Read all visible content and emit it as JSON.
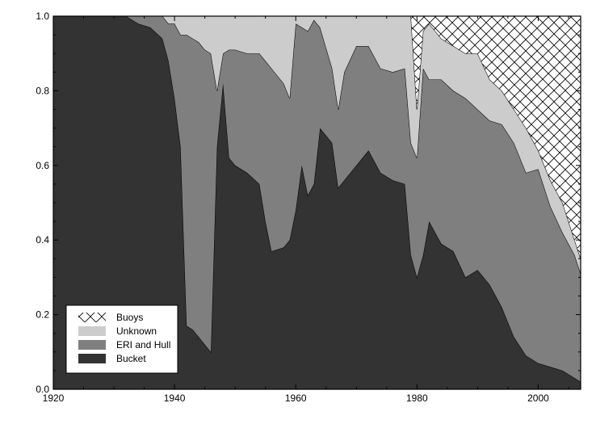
{
  "chart_data": {
    "type": "area",
    "stacked": true,
    "xlim": [
      1920,
      2007
    ],
    "ylim": [
      0.0,
      1.0
    ],
    "xticks": [
      "1920",
      "1940",
      "1960",
      "1980",
      "2000"
    ],
    "yticks": [
      "0.0",
      "0.2",
      "0.4",
      "0.6",
      "0.8",
      "1.0"
    ],
    "legend_position": "bottom-left",
    "x": [
      1920,
      1932,
      1934,
      1936,
      1938,
      1939,
      1940,
      1941,
      1942,
      1943,
      1944,
      1945,
      1946,
      1947,
      1948,
      1949,
      1950,
      1952,
      1954,
      1955,
      1956,
      1958,
      1959,
      1960,
      1961,
      1962,
      1963,
      1964,
      1966,
      1967,
      1968,
      1970,
      1972,
      1974,
      1976,
      1978,
      1979,
      1980,
      1981,
      1982,
      1984,
      1986,
      1988,
      1990,
      1992,
      1994,
      1996,
      1998,
      2000,
      2002,
      2004,
      2006,
      2007
    ],
    "series": [
      {
        "name": "Bucket",
        "fill": "#333333",
        "values": [
          1.0,
          1.0,
          0.98,
          0.97,
          0.94,
          0.88,
          0.78,
          0.65,
          0.17,
          0.16,
          0.14,
          0.12,
          0.1,
          0.65,
          0.82,
          0.62,
          0.6,
          0.58,
          0.55,
          0.45,
          0.37,
          0.38,
          0.4,
          0.48,
          0.6,
          0.52,
          0.55,
          0.7,
          0.66,
          0.54,
          0.56,
          0.6,
          0.64,
          0.58,
          0.56,
          0.55,
          0.36,
          0.3,
          0.36,
          0.45,
          0.39,
          0.37,
          0.3,
          0.32,
          0.28,
          0.22,
          0.14,
          0.09,
          0.07,
          0.06,
          0.05,
          0.03,
          0.02
        ]
      },
      {
        "name": "ERI and Hull",
        "fill": "#7f7f7f",
        "values": [
          0.0,
          0.0,
          0.02,
          0.03,
          0.06,
          0.1,
          0.2,
          0.3,
          0.78,
          0.78,
          0.79,
          0.79,
          0.8,
          0.15,
          0.08,
          0.29,
          0.31,
          0.32,
          0.35,
          0.43,
          0.49,
          0.44,
          0.38,
          0.5,
          0.37,
          0.44,
          0.44,
          0.27,
          0.2,
          0.21,
          0.29,
          0.32,
          0.28,
          0.28,
          0.29,
          0.31,
          0.3,
          0.32,
          0.5,
          0.38,
          0.44,
          0.43,
          0.48,
          0.43,
          0.44,
          0.49,
          0.52,
          0.49,
          0.52,
          0.43,
          0.37,
          0.33,
          0.29
        ]
      },
      {
        "name": "Unknown",
        "fill": "#cccccc",
        "values": [
          0.0,
          0.0,
          0.0,
          0.0,
          0.0,
          0.02,
          0.02,
          0.05,
          0.05,
          0.06,
          0.07,
          0.09,
          0.1,
          0.2,
          0.1,
          0.09,
          0.09,
          0.1,
          0.1,
          0.12,
          0.14,
          0.18,
          0.22,
          0.02,
          0.03,
          0.04,
          0.01,
          0.03,
          0.14,
          0.25,
          0.15,
          0.08,
          0.08,
          0.14,
          0.15,
          0.14,
          0.34,
          0.13,
          0.1,
          0.15,
          0.11,
          0.12,
          0.12,
          0.15,
          0.11,
          0.09,
          0.09,
          0.12,
          0.05,
          0.07,
          0.08,
          0.04,
          0.04
        ]
      },
      {
        "name": "Buoys",
        "fill": "hatch",
        "values": [
          0.0,
          0.0,
          0.0,
          0.0,
          0.0,
          0.0,
          0.0,
          0.0,
          0.0,
          0.0,
          0.0,
          0.0,
          0.0,
          0.0,
          0.0,
          0.0,
          0.0,
          0.0,
          0.0,
          0.0,
          0.0,
          0.0,
          0.0,
          0.0,
          0.0,
          0.0,
          0.0,
          0.0,
          0.0,
          0.0,
          0.0,
          0.0,
          0.0,
          0.0,
          0.0,
          0.0,
          0.0,
          0.25,
          0.04,
          0.02,
          0.06,
          0.08,
          0.1,
          0.1,
          0.17,
          0.2,
          0.25,
          0.3,
          0.36,
          0.44,
          0.5,
          0.6,
          0.65
        ]
      }
    ],
    "legend": [
      {
        "label": "Buoys",
        "swatch": "hatch"
      },
      {
        "label": "Unknown",
        "swatch": "#cccccc"
      },
      {
        "label": "ERI and Hull",
        "swatch": "#7f7f7f"
      },
      {
        "label": "Bucket",
        "swatch": "#333333"
      }
    ]
  }
}
